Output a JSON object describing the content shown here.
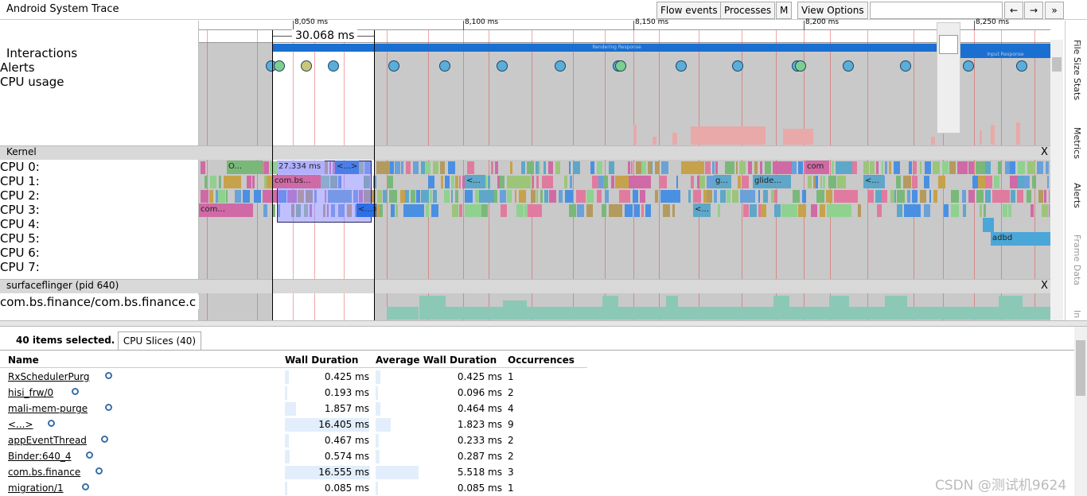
{
  "header": {
    "title": "Android System Trace",
    "buttons": [
      "Flow events",
      "Processes",
      "M",
      "View Options"
    ],
    "nav": [
      "←",
      "→",
      "»"
    ]
  },
  "timeline": {
    "ticks": [
      "8,050 ms",
      "8,100 ms",
      "8,150 ms",
      "8,200 ms",
      "8,250 ms"
    ],
    "selection": "30.068 ms",
    "bars": [
      "Rendering Response",
      "Input Response"
    ]
  },
  "tracks": {
    "interactions": "Interactions",
    "alerts": "Alerts",
    "cpu_usage": "CPU usage",
    "kernel": "Kernel",
    "cpus": [
      "CPU 0:",
      "CPU 1:",
      "CPU 2:",
      "CPU 3:",
      "CPU 4:",
      "CPU 5:",
      "CPU 6:",
      "CPU 7:"
    ],
    "process": "surfaceflinger (pid 640)",
    "thread": "com.bs.finance/com.bs.finance.c",
    "close": "X"
  },
  "slices": {
    "s0": "O...",
    "s1": "27.334 ms",
    "s2": "<...>",
    "s3": "com.bs...",
    "s4": "com...",
    "s5": "com",
    "s6": "<...",
    "s7": "g...",
    "s8": "glide...",
    "s9": "<...",
    "s10": "<...",
    "s11": "adbd",
    "s12": "<...>"
  },
  "side_tabs": [
    "File Size Stats",
    "Metrics",
    "Alerts",
    "Frame Data",
    "In"
  ],
  "panel": {
    "summary": "40 items selected.",
    "tab": "CPU Slices (40)",
    "columns": [
      "Name",
      "Wall Duration",
      "Average Wall Duration",
      "Occurrences"
    ],
    "rows": [
      [
        "RxSchedulerPurg",
        "0.425 ms",
        "0.425 ms",
        1
      ],
      [
        "hisi_frw/0",
        "0.193 ms",
        "0.096 ms",
        2
      ],
      [
        "mali-mem-purge",
        "1.857 ms",
        "0.464 ms",
        4
      ],
      [
        "<...>",
        "16.405 ms",
        "1.823 ms",
        9
      ],
      [
        "appEventThread",
        "0.467 ms",
        "0.233 ms",
        2
      ],
      [
        "Binder:640_4",
        "0.574 ms",
        "0.287 ms",
        2
      ],
      [
        "com.bs.finance",
        "16.555 ms",
        "5.518 ms",
        3
      ],
      [
        "migration/1",
        "0.085 ms",
        "0.085 ms",
        1
      ]
    ]
  },
  "watermark": "CSDN @测试机9624"
}
